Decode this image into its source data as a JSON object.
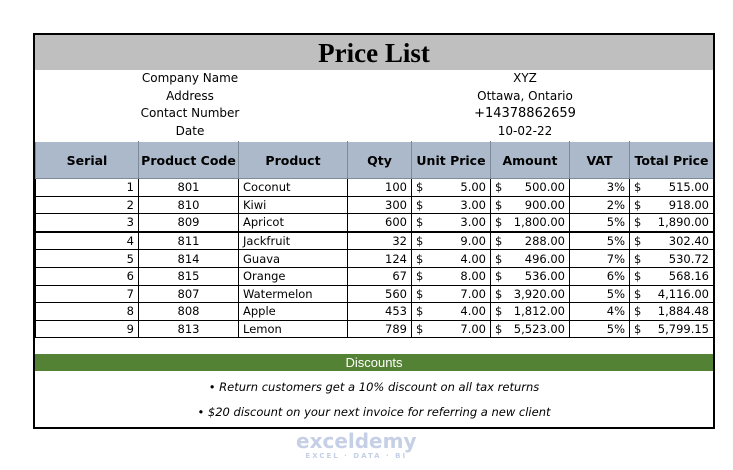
{
  "title": "Price List",
  "info": {
    "labels": [
      "Company Name",
      "Address",
      "Contact Number",
      "Date"
    ],
    "values": [
      "XYZ",
      "Ottawa, Ontario",
      "+14378862659",
      "10-02-22"
    ]
  },
  "headers": [
    "Serial",
    "Product Code",
    "Product",
    "Qty",
    "Unit Price",
    "Amount",
    "VAT",
    "Total Price"
  ],
  "rows": [
    [
      "1",
      "801",
      "Coconut",
      "100",
      "5.00",
      "500.00",
      "3%",
      "515.00"
    ],
    [
      "2",
      "810",
      "Kiwi",
      "300",
      "3.00",
      "900.00",
      "2%",
      "918.00"
    ],
    [
      "3",
      "809",
      "Apricot",
      "600",
      "3.00",
      "1,800.00",
      "5%",
      "1,890.00"
    ],
    [
      "4",
      "811",
      "Jackfruit",
      "32",
      "9.00",
      "288.00",
      "5%",
      "302.40"
    ],
    [
      "5",
      "814",
      "Guava",
      "124",
      "4.00",
      "496.00",
      "7%",
      "530.72"
    ],
    [
      "6",
      "815",
      "Orange",
      "67",
      "8.00",
      "536.00",
      "6%",
      "568.16"
    ],
    [
      "7",
      "807",
      "Watermelon",
      "560",
      "7.00",
      "3,920.00",
      "5%",
      "4,116.00"
    ],
    [
      "8",
      "808",
      "Apple",
      "453",
      "4.00",
      "1,812.00",
      "4%",
      "1,884.48"
    ],
    [
      "9",
      "813",
      "Lemon",
      "789",
      "7.00",
      "5,523.00",
      "5%",
      "5,799.15"
    ]
  ],
  "currency": "$",
  "discounts": {
    "title": "Discounts",
    "notes": [
      "• Return customers get a 10% discount on all tax returns",
      "• $20 discount on your next invoice for referring a new client"
    ]
  },
  "watermark": {
    "name": "exceldemy",
    "tagline": "EXCEL · DATA · BI"
  },
  "colors": {
    "title_bg": "#bfbfbf",
    "header_bg": "#acb9ca",
    "discount_bg": "#548235"
  }
}
